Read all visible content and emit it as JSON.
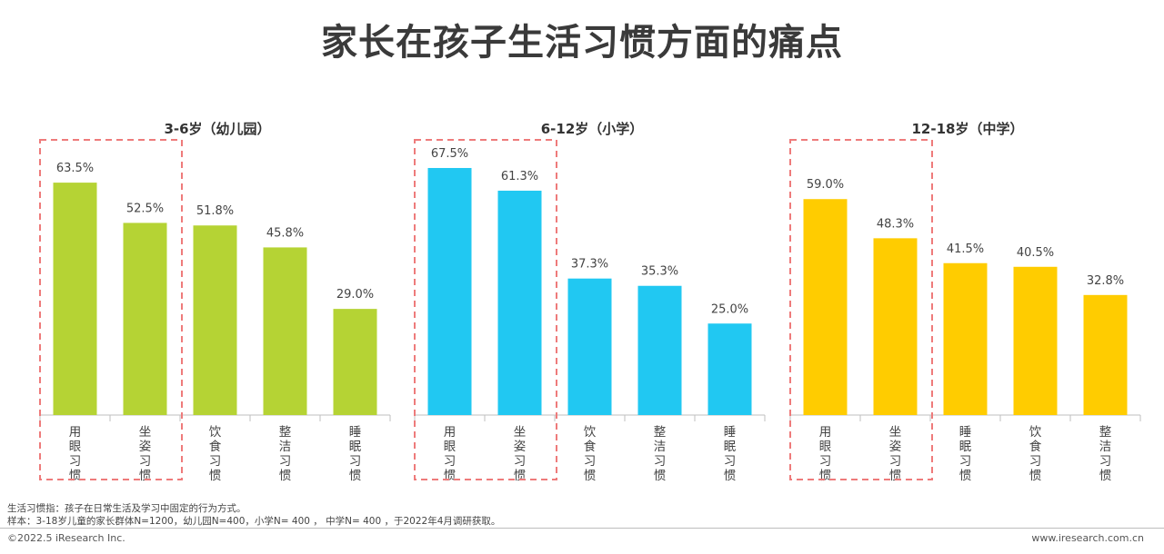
{
  "title": "家长在孩子生活习惯方面的痛点",
  "chart_data": [
    {
      "type": "bar",
      "title": "3-6岁（幼儿园）",
      "color": "#b5d334",
      "categories": [
        "用眼习惯",
        "坐姿习惯",
        "饮食习惯",
        "整洁习惯",
        "睡眠习惯"
      ],
      "values": [
        63.5,
        52.5,
        51.8,
        45.8,
        29.0
      ],
      "labels": [
        "63.5%",
        "52.5%",
        "51.8%",
        "45.8%",
        "29.0%"
      ],
      "highlighted": 2
    },
    {
      "type": "bar",
      "title": "6-12岁（小学）",
      "color": "#21c8f2",
      "categories": [
        "用眼习惯",
        "坐姿习惯",
        "饮食习惯",
        "整洁习惯",
        "睡眠习惯"
      ],
      "values": [
        67.5,
        61.3,
        37.3,
        35.3,
        25.0
      ],
      "labels": [
        "67.5%",
        "61.3%",
        "37.3%",
        "35.3%",
        "25.0%"
      ],
      "highlighted": 2
    },
    {
      "type": "bar",
      "title": "12-18岁（中学）",
      "color": "#ffcc00",
      "categories": [
        "用眼习惯",
        "坐姿习惯",
        "睡眠习惯",
        "饮食习惯",
        "整洁习惯"
      ],
      "values": [
        59.0,
        48.3,
        41.5,
        40.5,
        32.8
      ],
      "labels": [
        "59.0%",
        "48.3%",
        "41.5%",
        "40.5%",
        "32.8%"
      ],
      "highlighted": 2
    }
  ],
  "footnotes": {
    "definition": "生活习惯指：孩子在日常生活及学习中固定的行为方式。",
    "sample": "样本：3-18岁儿童的家长群体N=1200，幼儿园N=400，小学N= 400 ， 中学N= 400 ，于2022年4月调研获取。"
  },
  "footer": {
    "copyright": "©2022.5 iResearch Inc.",
    "website": "www.iresearch.com.cn"
  },
  "highlight_color": "#ee7b7b"
}
